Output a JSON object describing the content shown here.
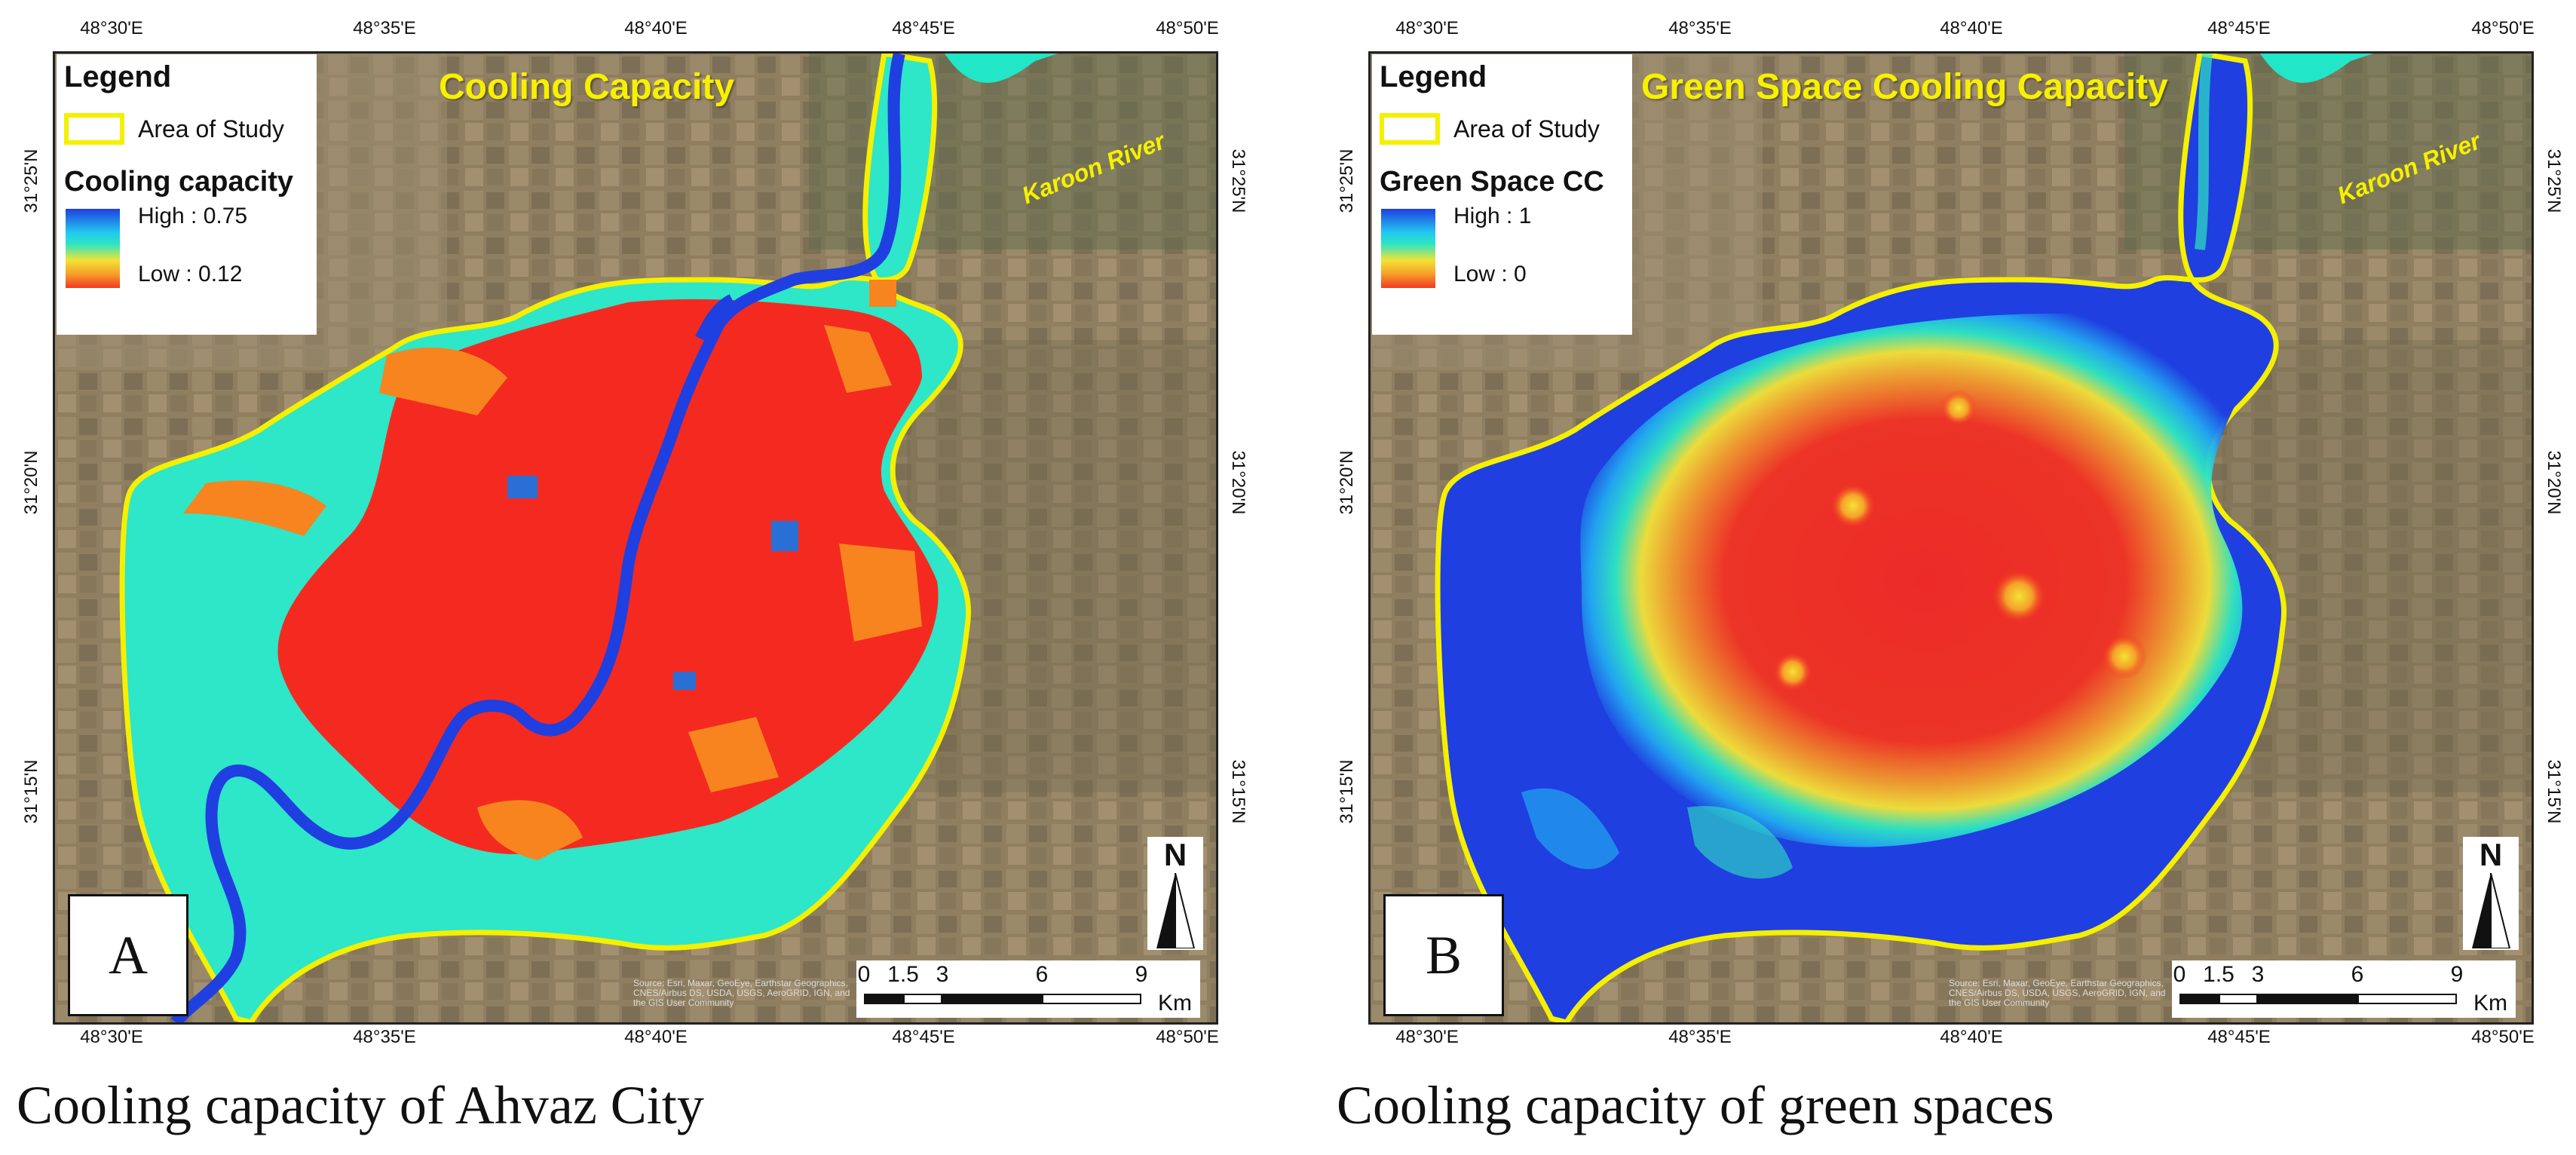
{
  "figure": {
    "panels": [
      {
        "id": "A",
        "letter": "A",
        "map_title": "Cooling Capacity",
        "legend": {
          "heading": "Legend",
          "area_label": "Area of Study",
          "ramp_title": "Cooling capacity",
          "high_label": "High : 0.75",
          "low_label": "Low : 0.12",
          "high_value": 0.75,
          "low_value": 0.12
        },
        "river_label": "Karoon River",
        "caption": "Cooling capacity of Ahvaz City"
      },
      {
        "id": "B",
        "letter": "B",
        "map_title": "Green Space Cooling Capacity",
        "legend": {
          "heading": "Legend",
          "area_label": "Area of Study",
          "ramp_title": "Green Space CC",
          "high_label": "High : 1",
          "low_label": "Low : 0",
          "high_value": 1,
          "low_value": 0
        },
        "river_label": "Karoon River",
        "caption": "Cooling capacity of green spaces"
      }
    ],
    "lon_ticks": [
      "48°30'E",
      "48°35'E",
      "48°40'E",
      "48°45'E",
      "48°50'E"
    ],
    "lat_ticks": [
      "31°25'N",
      "31°20'N",
      "31°15'N"
    ],
    "north_label": "N",
    "scale": {
      "labels": [
        "0",
        "1.5",
        "3",
        "6",
        "9"
      ],
      "values_km": [
        0,
        1.5,
        3,
        6,
        9
      ],
      "unit": "Km"
    },
    "credit": "Source: Esri, Maxar, GeoEye, Earthstar Geographics, CNES/Airbus DS, USDA, USGS, AeroGRID, IGN, and the GIS User Community",
    "colors": {
      "study_area_outline": "#f4f000",
      "ramp_high": "#1f3fe0",
      "ramp_mid": "#2ee6c0",
      "ramp_low": "#f23a22",
      "river": "#22e6c8",
      "title_text": "#f7f000"
    }
  }
}
